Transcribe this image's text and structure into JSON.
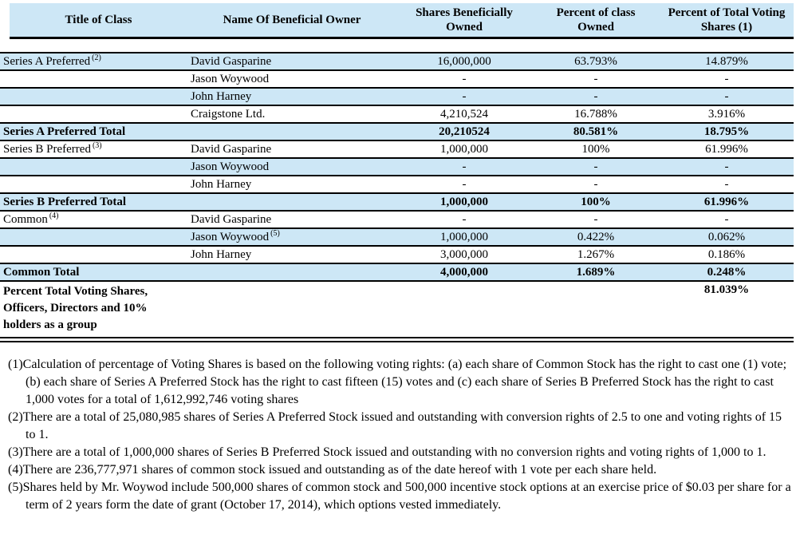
{
  "table": {
    "columns": [
      "Title of Class",
      "Name Of Beneficial Owner",
      "Shares Beneficially Owned",
      "Percent of class Owned",
      "Percent of Total Voting Shares (1)"
    ],
    "shade_color": "#cde7f6",
    "rows": [
      {
        "cls": "Series A Preferred",
        "cls_sup": "(2)",
        "owner": "David Gasparine",
        "owner_sup": "",
        "shares": "16,000,000",
        "pct_class": "63.793%",
        "pct_voting": "14.879%",
        "shaded": true,
        "bold": false,
        "tall": false
      },
      {
        "cls": "",
        "cls_sup": "",
        "owner": "Jason Woywood",
        "owner_sup": "",
        "shares": "-",
        "pct_class": "-",
        "pct_voting": "-",
        "shaded": false,
        "bold": false,
        "tall": false
      },
      {
        "cls": "",
        "cls_sup": "",
        "owner": "John Harney",
        "owner_sup": "",
        "shares": "-",
        "pct_class": "-",
        "pct_voting": "-",
        "shaded": true,
        "bold": false,
        "tall": false
      },
      {
        "cls": "",
        "cls_sup": "",
        "owner": "Craigstone Ltd.",
        "owner_sup": "",
        "shares": "4,210,524",
        "pct_class": "16.788%",
        "pct_voting": "3.916%",
        "shaded": false,
        "bold": false,
        "tall": false
      },
      {
        "cls": "Series A Preferred Total",
        "cls_sup": "",
        "owner": "",
        "owner_sup": "",
        "shares": "20,210524",
        "pct_class": "80.581%",
        "pct_voting": "18.795%",
        "shaded": true,
        "bold": true,
        "tall": false
      },
      {
        "cls": "Series B Preferred",
        "cls_sup": "(3)",
        "owner": "David Gasparine",
        "owner_sup": "",
        "shares": "1,000,000",
        "pct_class": "100%",
        "pct_voting": "61.996%",
        "shaded": false,
        "bold": false,
        "tall": false
      },
      {
        "cls": "",
        "cls_sup": "",
        "owner": "Jason Woywood",
        "owner_sup": "",
        "shares": "-",
        "pct_class": "-",
        "pct_voting": "-",
        "shaded": true,
        "bold": false,
        "tall": false
      },
      {
        "cls": "",
        "cls_sup": "",
        "owner": "John Harney",
        "owner_sup": "",
        "shares": "-",
        "pct_class": "-",
        "pct_voting": "-",
        "shaded": false,
        "bold": false,
        "tall": false
      },
      {
        "cls": "Series B Preferred Total",
        "cls_sup": "",
        "owner": "",
        "owner_sup": "",
        "shares": "1,000,000",
        "pct_class": "100%",
        "pct_voting": "61.996%",
        "shaded": true,
        "bold": true,
        "tall": false
      },
      {
        "cls": "Common",
        "cls_sup": "(4)",
        "owner": "David Gasparine",
        "owner_sup": "",
        "shares": "-",
        "pct_class": "-",
        "pct_voting": "-",
        "shaded": false,
        "bold": false,
        "tall": false
      },
      {
        "cls": "",
        "cls_sup": "",
        "owner": "Jason Woywood",
        "owner_sup": "(5)",
        "shares": "1,000,000",
        "pct_class": "0.422%",
        "pct_voting": "0.062%",
        "shaded": true,
        "bold": false,
        "tall": false
      },
      {
        "cls": "",
        "cls_sup": "",
        "owner": "John Harney",
        "owner_sup": "",
        "shares": "3,000,000",
        "pct_class": "1.267%",
        "pct_voting": "0.186%",
        "shaded": false,
        "bold": false,
        "tall": false
      },
      {
        "cls": "Common Total",
        "cls_sup": "",
        "owner": "",
        "owner_sup": "",
        "shares": "4,000,000",
        "pct_class": "1.689%",
        "pct_voting": "0.248%",
        "shaded": true,
        "bold": true,
        "tall": false
      },
      {
        "cls": "Percent Total Voting Shares, Officers, Directors and 10% holders as a group",
        "cls_sup": "",
        "owner": "",
        "owner_sup": "",
        "shares": "",
        "pct_class": "",
        "pct_voting": "81.039%",
        "shaded": false,
        "bold": true,
        "tall": true
      }
    ]
  },
  "footnotes": [
    {
      "marker": "(1)",
      "text": "Calculation of percentage of Voting Shares is based on the following voting rights: (a) each share of Common Stock has the right to cast one (1) vote; (b) each share of Series A Preferred Stock has the right to cast fifteen (15) votes and (c) each share of Series B Preferred Stock has the right to cast 1,000 votes for a total of 1,612,992,746 voting shares"
    },
    {
      "marker": "(2)",
      "text": "There are a total of 25,080,985 shares of Series A Preferred Stock issued and outstanding with conversion rights of 2.5 to one and voting rights of 15 to 1."
    },
    {
      "marker": "(3)",
      "text": "There are a total of 1,000,000 shares of Series B Preferred Stock issued and outstanding with no conversion rights and voting rights of 1,000 to 1."
    },
    {
      "marker": "(4)",
      "text": "There are 236,777,971 shares of common stock issued and outstanding as of the date hereof with 1 vote per each share held."
    },
    {
      "marker": "(5)",
      "text": "Shares held by Mr. Woywod include 500,000 shares of common stock and 500,000 incentive stock options at an exercise price of $0.03 per share for a term of 2 years form the date of grant (October 17, 2014), which options vested immediately."
    }
  ]
}
